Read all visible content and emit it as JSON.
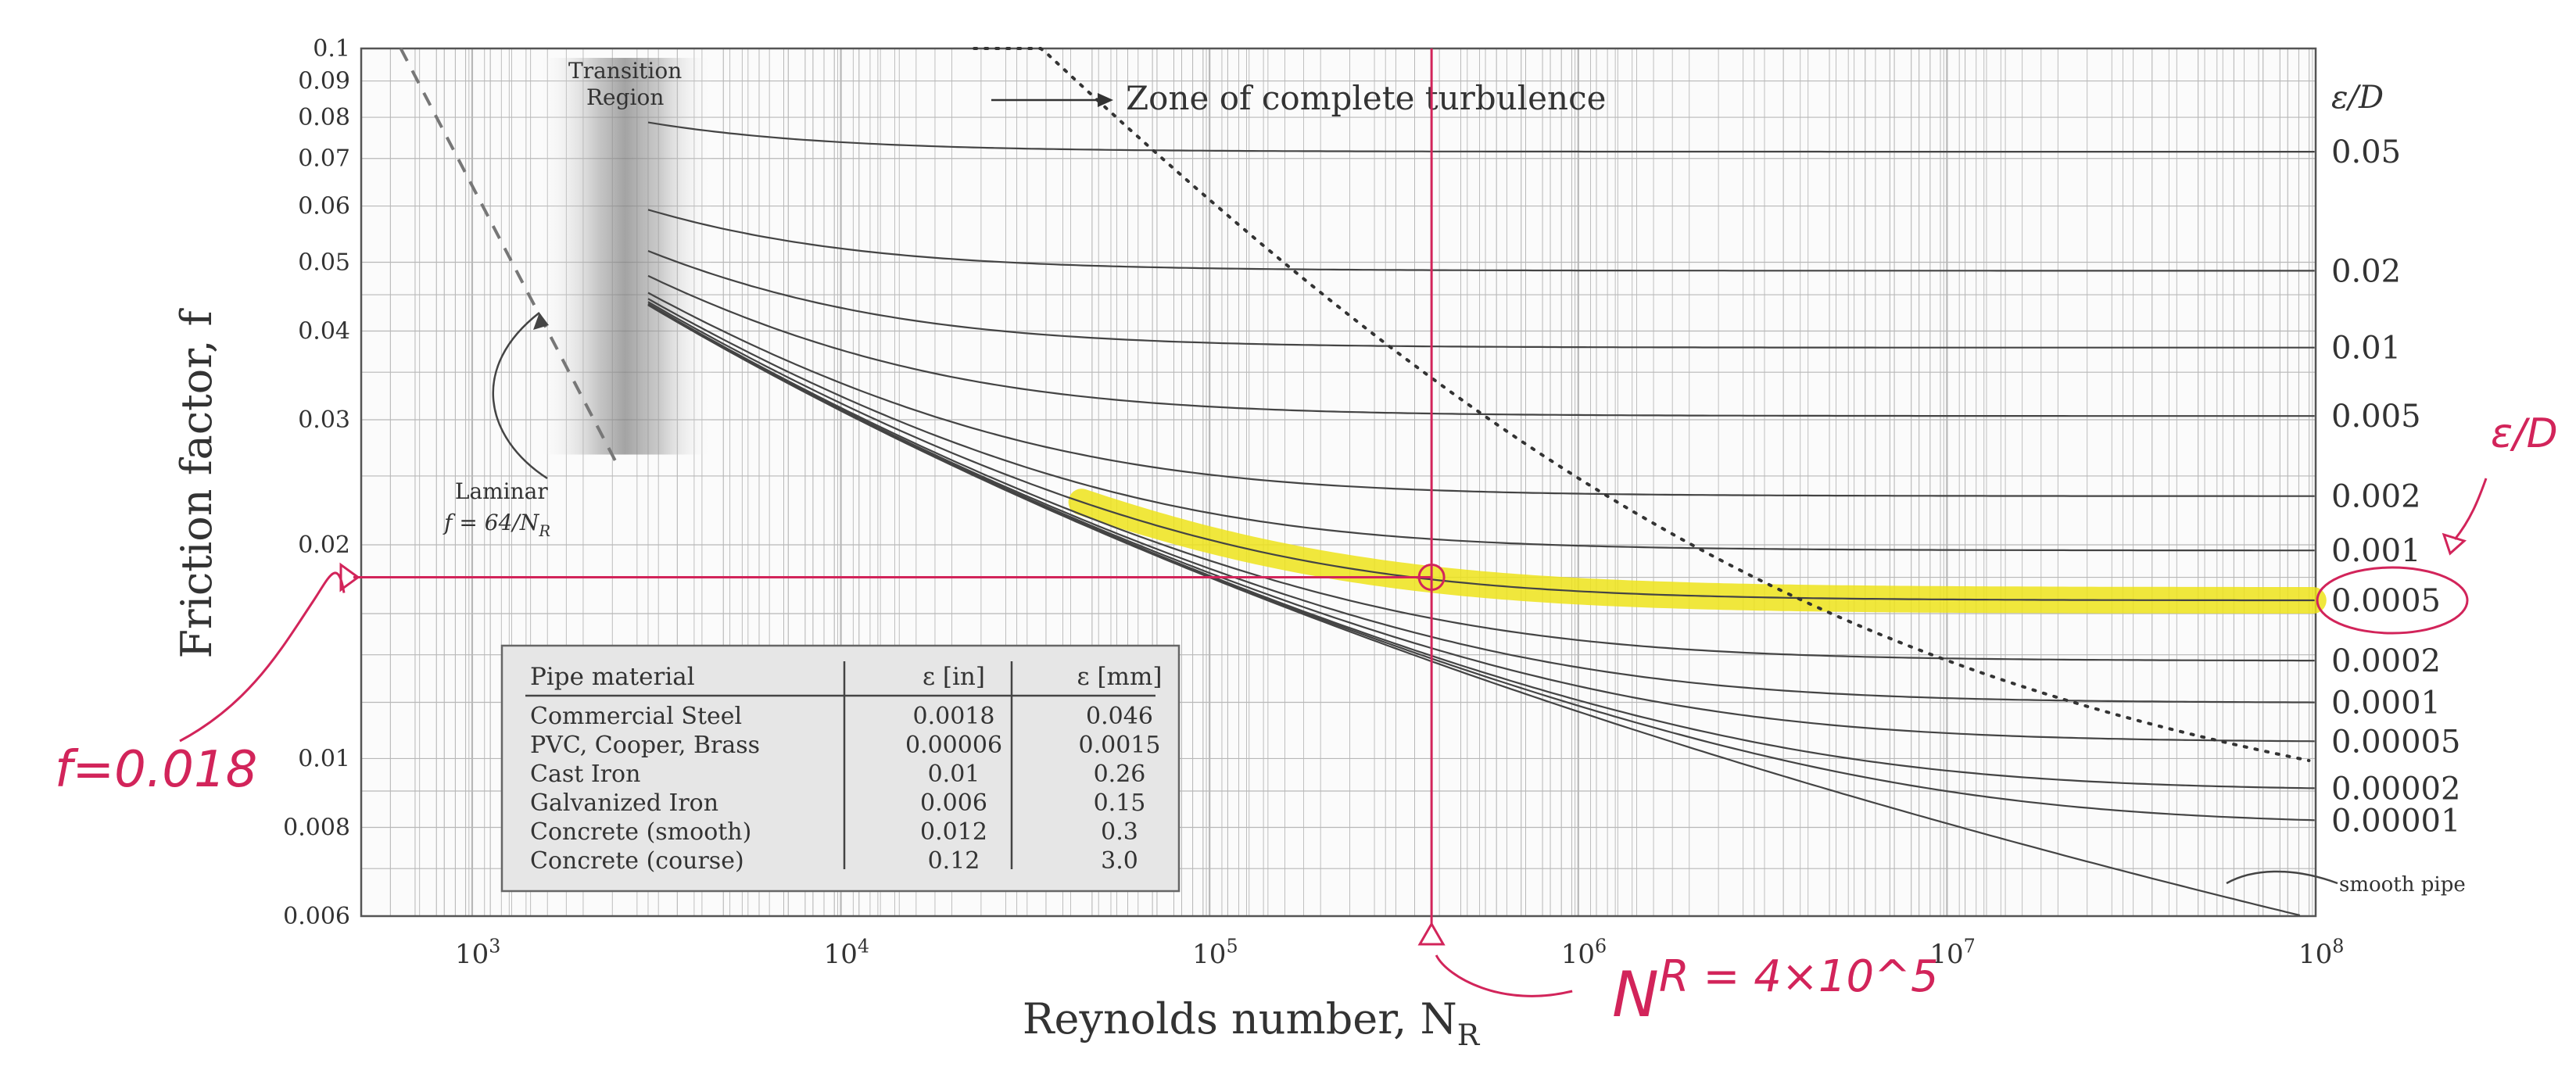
{
  "chart_data": {
    "type": "line",
    "xscale": "log",
    "yscale": "log",
    "xlim": [
      500,
      100000000
    ],
    "ylim": [
      0.006,
      0.1
    ],
    "xlabel": "Reynolds number, N_R",
    "ylabel": "Friction factor, f",
    "grid": true,
    "x_ticks": [
      "10^3",
      "10^4",
      "10^5",
      "10^6",
      "10^7",
      "10^8"
    ],
    "y_ticks": [
      {
        "v": 0.1,
        "t": "0.1"
      },
      {
        "v": 0.09,
        "t": "0.09"
      },
      {
        "v": 0.08,
        "t": "0.08"
      },
      {
        "v": 0.07,
        "t": "0.07"
      },
      {
        "v": 0.06,
        "t": "0.06"
      },
      {
        "v": 0.05,
        "t": "0.05"
      },
      {
        "v": 0.04,
        "t": "0.04"
      },
      {
        "v": 0.03,
        "t": "0.03"
      },
      {
        "v": 0.02,
        "t": "0.02"
      },
      {
        "v": 0.01,
        "t": "0.01"
      },
      {
        "v": 0.008,
        "t": "0.008"
      },
      {
        "v": 0.006,
        "t": "0.006"
      }
    ],
    "right_axis_title": "ε/D",
    "relative_roughness": [
      {
        "label": "0.05",
        "value": 0.05
      },
      {
        "label": "0.02",
        "value": 0.02
      },
      {
        "label": "0.01",
        "value": 0.01
      },
      {
        "label": "0.005",
        "value": 0.005
      },
      {
        "label": "0.002",
        "value": 0.002
      },
      {
        "label": "0.001",
        "value": 0.001
      },
      {
        "label": "0.0005",
        "value": 0.0005
      },
      {
        "label": "0.0002",
        "value": 0.0002
      },
      {
        "label": "0.0001",
        "value": 0.0001
      },
      {
        "label": "0.00005",
        "value": 5e-05
      },
      {
        "label": "0.00002",
        "value": 2e-05
      },
      {
        "label": "0.00001",
        "value": 1e-05
      }
    ],
    "annotations": {
      "transition": "Transition\nRegion",
      "complete_turbulence": "Zone of complete turbulence",
      "laminar_label": "Laminar",
      "laminar_formula": "f = 64/N_R",
      "smooth_pipe": "smooth pipe"
    },
    "table": {
      "headers": [
        "Pipe material",
        "ε [in]",
        "ε [mm]"
      ],
      "rows": [
        [
          "Commercial Steel",
          "0.0018",
          "0.046"
        ],
        [
          "PVC, Cooper, Brass",
          "0.00006",
          "0.0015"
        ],
        [
          "Cast Iron",
          "0.01",
          "0.26"
        ],
        [
          "Galvanized Iron",
          "0.006",
          "0.15"
        ],
        [
          "Concrete (smooth)",
          "0.012",
          "0.3"
        ],
        [
          "Concrete (course)",
          "0.12",
          "3.0"
        ]
      ]
    },
    "handwritten": {
      "f_label": "f=0.018",
      "nr_label": "N_R = 4×10^5",
      "ed_label": "ε/D",
      "f_value": 0.018,
      "nr_value": 400000,
      "highlighted_curve": 0.0005
    },
    "colors": {
      "curves": "#444444",
      "grid": "#b8b8b8",
      "pen": "#d2245a",
      "highlight": "#ede31a"
    }
  }
}
